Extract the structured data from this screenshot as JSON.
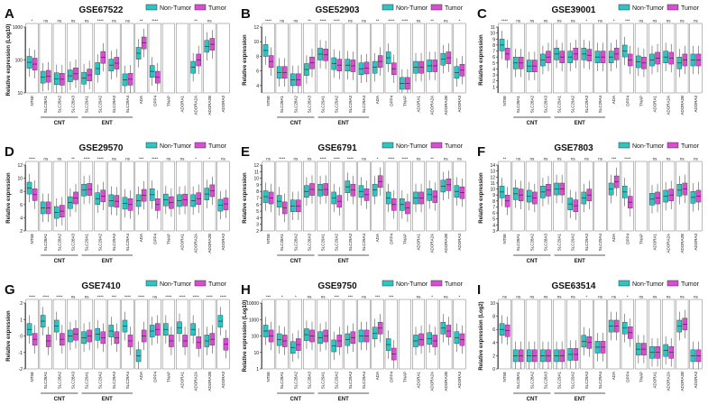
{
  "legend": {
    "non_tumor": "Non-Tumor",
    "tumor": "Tumor"
  },
  "colors": {
    "non_tumor": "#2ec4c4",
    "tumor": "#d84ed2",
    "axis": "#222222",
    "sig": "#222222"
  },
  "chart_data": [
    {
      "letter": "A",
      "title": "GSE67522",
      "type": "box",
      "ylabel": "Relative expression (Log10)",
      "scale": "log",
      "ylim": [
        10,
        1000
      ],
      "yticks": [
        {
          "v": 10,
          "label": "10"
        },
        {
          "v": 100,
          "label": "100"
        },
        {
          "v": 1000,
          "label": "1000"
        }
      ],
      "categories": [
        "NT5E",
        "SLC28A1",
        "SLC28A2",
        "SLC28A3",
        "SLC29A1",
        "SLC29A2",
        "SLC29A3",
        "SLC29A4",
        "ADA",
        "DPP4",
        "TNAP",
        "ADORA1",
        "ADORA2A",
        "ADORA2B",
        "ADORA3"
      ],
      "sig": [
        "*",
        "ns",
        "ns",
        "ns",
        "ns",
        "****",
        "ns",
        "ns",
        "**",
        "****",
        "",
        "",
        "**",
        "ns",
        ""
      ],
      "nt": [
        85,
        30,
        27,
        33,
        28,
        55,
        70,
        25,
        160,
        45,
        null,
        null,
        60,
        260,
        null
      ],
      "tu": [
        75,
        32,
        26,
        38,
        35,
        120,
        80,
        26,
        330,
        30,
        null,
        null,
        100,
        300,
        null
      ],
      "groups": [
        {
          "label": "CNT",
          "from": 1,
          "to": 3
        },
        {
          "label": "ENT",
          "from": 4,
          "to": 7
        }
      ]
    },
    {
      "letter": "B",
      "title": "GSE52903",
      "type": "box",
      "ylabel": "Relative expression",
      "scale": "linear",
      "ylim": [
        3,
        12
      ],
      "yticks": [
        {
          "v": 4,
          "label": "4"
        },
        {
          "v": 6,
          "label": "6"
        },
        {
          "v": 8,
          "label": "8"
        },
        {
          "v": 10,
          "label": "10"
        },
        {
          "v": 12,
          "label": "12"
        }
      ],
      "categories": [
        "NT5E",
        "SLC28A1",
        "SLC28A2",
        "SLC28A3",
        "SLC29A1",
        "SLC29A2",
        "SLC29A3",
        "SLC29A4",
        "ADA",
        "DPP4",
        "TNAP",
        "ADORA1",
        "ADORA2A",
        "ADORA2B",
        "ADORA3"
      ],
      "sig": [
        "****",
        "ns",
        "ns",
        "**",
        "****",
        "****",
        "ns",
        "ns",
        "**",
        "****",
        "****",
        "ns",
        "**",
        "ns",
        "*"
      ],
      "nt": [
        8.8,
        5.8,
        4.8,
        6.2,
        8.3,
        7.0,
        6.8,
        6.3,
        6.5,
        7.8,
        4.3,
        6.5,
        6.7,
        7.6,
        5.8
      ],
      "tu": [
        7.3,
        5.8,
        4.8,
        7.1,
        8.2,
        6.8,
        6.7,
        6.4,
        7.3,
        6.3,
        4.3,
        6.5,
        6.7,
        7.8,
        6.1
      ],
      "groups": [
        {
          "label": "CNT",
          "from": 1,
          "to": 3
        },
        {
          "label": "ENT",
          "from": 4,
          "to": 7
        }
      ]
    },
    {
      "letter": "C",
      "title": "GSE39001",
      "type": "box",
      "ylabel": "Relative expression",
      "scale": "linear",
      "ylim": [
        0,
        11
      ],
      "yticks": [
        {
          "v": 1,
          "label": "1"
        },
        {
          "v": 2,
          "label": "2"
        },
        {
          "v": 3,
          "label": "3"
        },
        {
          "v": 4,
          "label": "4"
        },
        {
          "v": 5,
          "label": "5"
        },
        {
          "v": 6,
          "label": "6"
        },
        {
          "v": 7,
          "label": "7"
        },
        {
          "v": 8,
          "label": "8"
        },
        {
          "v": 9,
          "label": "9"
        },
        {
          "v": 10,
          "label": "10"
        },
        {
          "v": 11,
          "label": "11"
        }
      ],
      "categories": [
        "NT5E",
        "SLC28A1",
        "SLC28A2",
        "SLC28A3",
        "SLC29A1",
        "SLC29A2",
        "SLC29A3",
        "SLC29A4",
        "ADA",
        "DPP4",
        "TNAP",
        "ADORA1",
        "ADORA2A",
        "ADORA2B",
        "ADORA3"
      ],
      "sig": [
        "****",
        "ns",
        "ns",
        "ns",
        "ns",
        "ns",
        "*",
        "ns",
        "*",
        "***",
        "ns",
        "ns",
        "ns",
        "ns",
        "ns"
      ],
      "nt": [
        8.0,
        5.0,
        4.5,
        5.5,
        6.5,
        6.0,
        6.5,
        6.0,
        6.0,
        7.0,
        5.2,
        5.5,
        6.0,
        5.0,
        5.5
      ],
      "tu": [
        6.5,
        5.0,
        4.5,
        6.0,
        6.0,
        6.5,
        6.3,
        6.0,
        6.5,
        5.5,
        5.0,
        5.8,
        5.8,
        5.5,
        5.5
      ],
      "groups": [
        {
          "label": "CNT",
          "from": 1,
          "to": 3
        },
        {
          "label": "ENT",
          "from": 4,
          "to": 7
        }
      ]
    },
    {
      "letter": "D",
      "title": "GSE29570",
      "type": "box",
      "ylabel": "Relative expression",
      "scale": "linear",
      "ylim": [
        2,
        12
      ],
      "yticks": [
        {
          "v": 2,
          "label": "2"
        },
        {
          "v": 4,
          "label": "4"
        },
        {
          "v": 6,
          "label": "6"
        },
        {
          "v": 8,
          "label": "8"
        },
        {
          "v": 10,
          "label": "10"
        },
        {
          "v": 12,
          "label": "12"
        }
      ],
      "categories": [
        "NT5E",
        "SLC28A1",
        "SLC28A2",
        "SLC28A3",
        "SLC29A1",
        "SLC29A2",
        "SLC29A3",
        "SLC29A4",
        "ADA",
        "DPP4",
        "TNAP",
        "ADORA1",
        "ADORA2A",
        "ADORA2B",
        "ADORA3"
      ],
      "sig": [
        "****",
        "ns",
        "ns",
        "**",
        "****",
        "****",
        "ns",
        "ns",
        "***",
        "****",
        "ns",
        "ns",
        "*",
        "*",
        "ns"
      ],
      "nt": [
        8.5,
        5.5,
        4.8,
        6.3,
        8.2,
        6.9,
        6.6,
        6.2,
        6.6,
        7.5,
        6.7,
        6.6,
        6.6,
        7.6,
        5.9
      ],
      "tu": [
        7.5,
        5.5,
        5.0,
        7.0,
        8.3,
        7.3,
        6.5,
        6.0,
        7.4,
        6.0,
        6.3,
        6.7,
        6.9,
        8.1,
        6.1
      ],
      "groups": [
        {
          "label": "CNT",
          "from": 1,
          "to": 3
        },
        {
          "label": "ENT",
          "from": 4,
          "to": 7
        }
      ]
    },
    {
      "letter": "E",
      "title": "GSE6791",
      "type": "box",
      "ylabel": "Relative expression",
      "scale": "linear",
      "ylim": [
        2,
        12
      ],
      "yticks": [
        {
          "v": 2,
          "label": "2"
        },
        {
          "v": 3,
          "label": "3"
        },
        {
          "v": 4,
          "label": "4"
        },
        {
          "v": 5,
          "label": "5"
        },
        {
          "v": 6,
          "label": "6"
        },
        {
          "v": 7,
          "label": "7"
        },
        {
          "v": 8,
          "label": "8"
        },
        {
          "v": 9,
          "label": "9"
        },
        {
          "v": 10,
          "label": "10"
        },
        {
          "v": 11,
          "label": "11"
        },
        {
          "v": 12,
          "label": "12"
        }
      ],
      "categories": [
        "NT5E",
        "SLC28A1",
        "SLC28A2",
        "SLC28A3",
        "SLC29A1",
        "SLC29A2",
        "SLC29A3",
        "SLC29A4",
        "ADA",
        "DPP4",
        "TNAP",
        "ADORA1",
        "ADORA2A",
        "ADORA2B",
        "ADORA3"
      ],
      "sig": [
        "ns",
        "****",
        "ns",
        "ns",
        "****",
        "****",
        "****",
        "ns",
        "*",
        "****",
        "****",
        "ns",
        "**",
        "ns",
        "ns"
      ],
      "nt": [
        7.2,
        6.5,
        5.8,
        8.0,
        8.2,
        7.0,
        8.7,
        8.0,
        8.2,
        7.0,
        6.0,
        7.0,
        7.5,
        8.8,
        8.0
      ],
      "tu": [
        7.0,
        5.5,
        5.8,
        8.3,
        8.3,
        6.5,
        8.2,
        7.5,
        9.5,
        6.0,
        5.5,
        7.0,
        7.2,
        9.0,
        7.8
      ],
      "groups": [
        {
          "label": "CNT",
          "from": 1,
          "to": 3
        },
        {
          "label": "ENT",
          "from": 4,
          "to": 7
        }
      ]
    },
    {
      "letter": "F",
      "title": "GSE7803",
      "type": "box",
      "ylabel": "Relative expression",
      "scale": "linear",
      "ylim": [
        3,
        14
      ],
      "yticks": [
        {
          "v": 3,
          "label": "3"
        },
        {
          "v": 4,
          "label": "4"
        },
        {
          "v": 5,
          "label": "5"
        },
        {
          "v": 6,
          "label": "6"
        },
        {
          "v": 7,
          "label": "7"
        },
        {
          "v": 8,
          "label": "8"
        },
        {
          "v": 9,
          "label": "9"
        },
        {
          "v": 10,
          "label": "10"
        },
        {
          "v": 11,
          "label": "11"
        },
        {
          "v": 12,
          "label": "12"
        },
        {
          "v": 13,
          "label": "13"
        },
        {
          "v": 14,
          "label": "14"
        }
      ],
      "categories": [
        "NT5E",
        "SLC28A1",
        "SLC28A2",
        "SLC28A3",
        "SLC29A1",
        "SLC29A2",
        "SLC29A3",
        "SLC29A4",
        "ADA",
        "DPP4",
        "TNAP",
        "ADORA1",
        "ADORA2A",
        "ADORA2B",
        "ADORA3"
      ],
      "sig": [
        "**",
        "ns",
        "ns",
        "ns",
        "ns",
        "ns",
        "ns",
        "ns",
        "***",
        "****",
        "",
        "ns",
        "ns",
        "ns",
        "ns"
      ],
      "nt": [
        9.5,
        9.2,
        8.8,
        9.5,
        10.0,
        7.5,
        8.5,
        null,
        10.0,
        9.5,
        null,
        8.3,
        8.8,
        9.8,
        8.6
      ],
      "tu": [
        8.0,
        9.0,
        8.5,
        9.8,
        10.0,
        7.2,
        9.0,
        null,
        11.2,
        7.8,
        null,
        8.5,
        9.0,
        10.0,
        8.8
      ],
      "groups": [
        {
          "label": "CNT",
          "from": 1,
          "to": 3
        },
        {
          "label": "ENT",
          "from": 4,
          "to": 7
        }
      ]
    },
    {
      "letter": "G",
      "title": "GSE7410",
      "type": "box",
      "ylabel": "Relative expression",
      "scale": "linear",
      "ylim": [
        -2,
        2
      ],
      "yticks": [
        {
          "v": -2,
          "label": "-2"
        },
        {
          "v": -1,
          "label": "-1"
        },
        {
          "v": 0,
          "label": "0"
        },
        {
          "v": 1,
          "label": "1"
        },
        {
          "v": 2,
          "label": "2"
        }
      ],
      "categories": [
        "NT5E",
        "SLC28A1",
        "SLC28A2",
        "SLC28A3",
        "SLC29A1",
        "SLC29A2",
        "SLC29A3",
        "SLC29A4",
        "ADA",
        "DPP4",
        "TNAP",
        "ADORA1",
        "ADORA2A",
        "ADORA2B",
        "ADORA3"
      ],
      "sig": [
        "****",
        "****",
        "****",
        "ns",
        "ns",
        "****",
        "***",
        "****",
        "****",
        "ns",
        "****",
        "****",
        "****",
        "****",
        "****"
      ],
      "nt": [
        0.4,
        0.9,
        0.6,
        0.0,
        -0.1,
        0.1,
        0.3,
        0.6,
        -1.2,
        0.3,
        0.4,
        0.5,
        0.4,
        -0.3,
        0.9
      ],
      "tu": [
        -0.2,
        -0.3,
        -0.2,
        0.1,
        0.0,
        -0.1,
        -0.1,
        -0.3,
        0.0,
        0.4,
        -0.3,
        -0.3,
        -0.4,
        -0.2,
        -0.5
      ],
      "groups": [
        {
          "label": "CNT",
          "from": 1,
          "to": 3
        },
        {
          "label": "ENT",
          "from": 4,
          "to": 7
        }
      ]
    },
    {
      "letter": "H",
      "title": "GSE9750",
      "type": "box",
      "ylabel": "Relative expression (Log10)",
      "scale": "log",
      "ylim": [
        1,
        10000
      ],
      "yticks": [
        {
          "v": 1,
          "label": "1"
        },
        {
          "v": 10,
          "label": "10"
        },
        {
          "v": 100,
          "label": "100"
        },
        {
          "v": 1000,
          "label": "1000"
        },
        {
          "v": 10000,
          "label": "10000"
        }
      ],
      "categories": [
        "NT5E",
        "SLC28A1",
        "SLC28A2",
        "SLC28A3",
        "SLC29A1",
        "SLC29A2",
        "SLC29A3",
        "SLC29A4",
        "ADA",
        "DPP4",
        "TNAP",
        "ADORA1",
        "ADORA2A",
        "ADORA2B",
        "ADORA3"
      ],
      "sig": [
        "***",
        "*",
        "*",
        "ns",
        "ns",
        "***",
        "***",
        "ns",
        "***",
        "***",
        "",
        "ns",
        "*",
        "ns",
        "*"
      ],
      "nt": [
        200,
        60,
        20,
        120,
        80,
        25,
        60,
        100,
        150,
        30,
        null,
        50,
        70,
        300,
        80
      ],
      "tu": [
        100,
        50,
        30,
        100,
        100,
        50,
        80,
        100,
        300,
        8,
        null,
        60,
        50,
        200,
        60
      ],
      "groups": [
        {
          "label": "CNT",
          "from": 1,
          "to": 3
        },
        {
          "label": "ENT",
          "from": 4,
          "to": 7
        }
      ]
    },
    {
      "letter": "I",
      "title": "GSE63514",
      "type": "box",
      "ylabel": "Relative expression (Log2)",
      "scale": "linear",
      "ylim": [
        0,
        10
      ],
      "yticks": [
        {
          "v": 0,
          "label": "0"
        },
        {
          "v": 2,
          "label": "2"
        },
        {
          "v": 4,
          "label": "4"
        },
        {
          "v": 6,
          "label": "6"
        },
        {
          "v": 8,
          "label": "8"
        },
        {
          "v": 10,
          "label": "10"
        }
      ],
      "categories": [
        "NT5E",
        "SLC28A1",
        "SLC28A2",
        "SLC28A3",
        "SLC29A1",
        "SLC29A2",
        "SLC29A3",
        "SLC29A4",
        "ADA",
        "DPP4",
        "TNAP",
        "ADORA1",
        "ADORA2A",
        "ADORA2B",
        "ADORA3"
      ],
      "sig": [
        "ns",
        "ns",
        "ns",
        "ns",
        "ns",
        "ns",
        "*",
        "ns",
        "ns",
        "*",
        "ns",
        "ns",
        "ns",
        "ns",
        "ns"
      ],
      "nt": [
        6.0,
        2.0,
        2.0,
        2.0,
        2.0,
        2.2,
        4.2,
        3.3,
        6.5,
        6.2,
        3.0,
        2.5,
        2.8,
        6.5,
        2.0
      ],
      "tu": [
        5.8,
        2.0,
        2.0,
        2.0,
        2.0,
        2.2,
        4.0,
        3.3,
        6.5,
        5.5,
        3.0,
        2.5,
        2.5,
        6.8,
        2.0
      ],
      "groups": [
        {
          "label": "CNT",
          "from": 1,
          "to": 3
        },
        {
          "label": "ENT",
          "from": 4,
          "to": 7
        }
      ]
    }
  ]
}
